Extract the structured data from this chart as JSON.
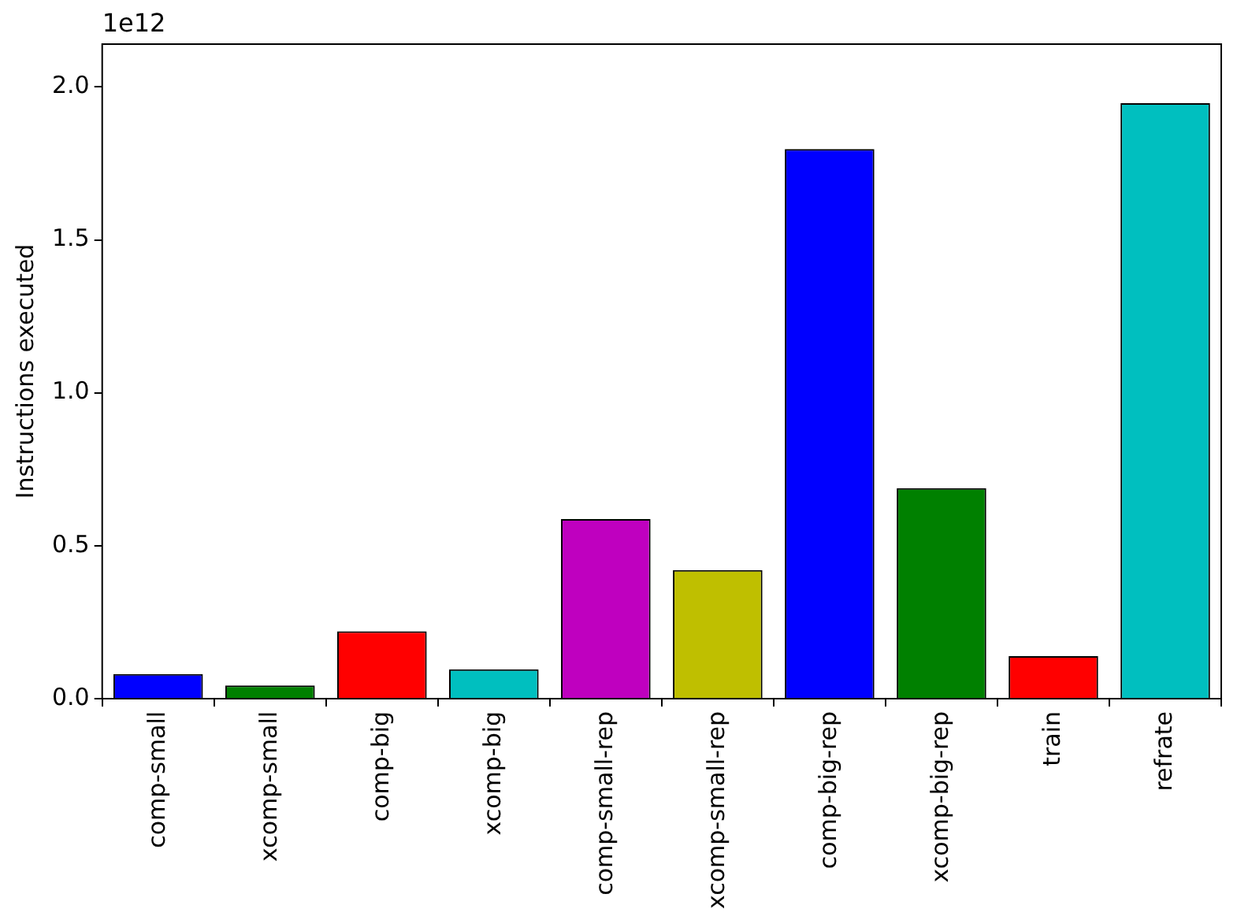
{
  "chart_data": {
    "type": "bar",
    "ylabel": "Instructions executed",
    "annotations": [
      "1e12"
    ],
    "categories": [
      "comp-small",
      "xcomp-small",
      "comp-big",
      "xcomp-big",
      "comp-small-rep",
      "xcomp-small-rep",
      "comp-big-rep",
      "xcomp-big-rep",
      "train",
      "refrate"
    ],
    "values": [
      0.08,
      0.043,
      0.22,
      0.096,
      0.587,
      0.42,
      1.797,
      0.688,
      0.139,
      1.947
    ],
    "colors": [
      "#0000ff",
      "#008000",
      "#ff0000",
      "#00bfbf",
      "#bf00bf",
      "#bfbf00",
      "#0000ff",
      "#008000",
      "#ff0000",
      "#00bfbf"
    ],
    "ylim": [
      0,
      2.14
    ],
    "yticks": [
      {
        "value": 0,
        "label": "0.0"
      },
      {
        "value": 0.5,
        "label": "0.5"
      },
      {
        "value": 1,
        "label": "1.0"
      },
      {
        "value": 1.5,
        "label": "1.5"
      },
      {
        "value": 2,
        "label": "2.0"
      }
    ],
    "grid": false,
    "legend": false
  }
}
